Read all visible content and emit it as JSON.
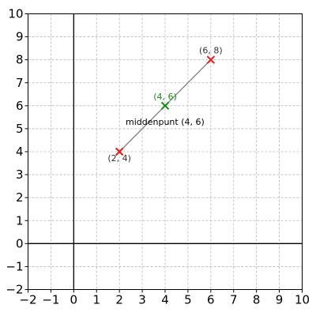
{
  "chart_data": {
    "type": "scatter",
    "title": "",
    "xlabel": "",
    "ylabel": "",
    "xlim": [
      -2,
      10
    ],
    "ylim": [
      -2,
      10
    ],
    "xticks": [
      -2,
      -1,
      0,
      1,
      2,
      3,
      4,
      5,
      6,
      7,
      8,
      9,
      10
    ],
    "yticks": [
      -2,
      -1,
      0,
      1,
      2,
      3,
      4,
      5,
      6,
      7,
      8,
      9,
      10
    ],
    "xtick_labels": [
      "−2",
      "−1",
      "0",
      "1",
      "2",
      "3",
      "4",
      "5",
      "6",
      "7",
      "8",
      "9",
      "10"
    ],
    "ytick_labels": [
      "−2",
      "−1",
      "0",
      "1",
      "2",
      "3",
      "4",
      "5",
      "6",
      "7",
      "8",
      "9",
      "10"
    ],
    "grid": true,
    "points": [
      {
        "x": 2,
        "y": 4,
        "label": "(2, 4)",
        "color": "#e41a1c",
        "marker": "x"
      },
      {
        "x": 6,
        "y": 8,
        "label": "(6, 8)",
        "color": "#e41a1c",
        "marker": "x"
      },
      {
        "x": 4,
        "y": 6,
        "label": "(4, 6)",
        "color": "#1a8a1a",
        "marker": "x"
      }
    ],
    "segment": {
      "from": [
        2,
        4
      ],
      "to": [
        6,
        8
      ],
      "color": "#808080"
    },
    "annotation": {
      "text": "middenpunt (4, 6)",
      "x": 4,
      "y": 6
    }
  }
}
